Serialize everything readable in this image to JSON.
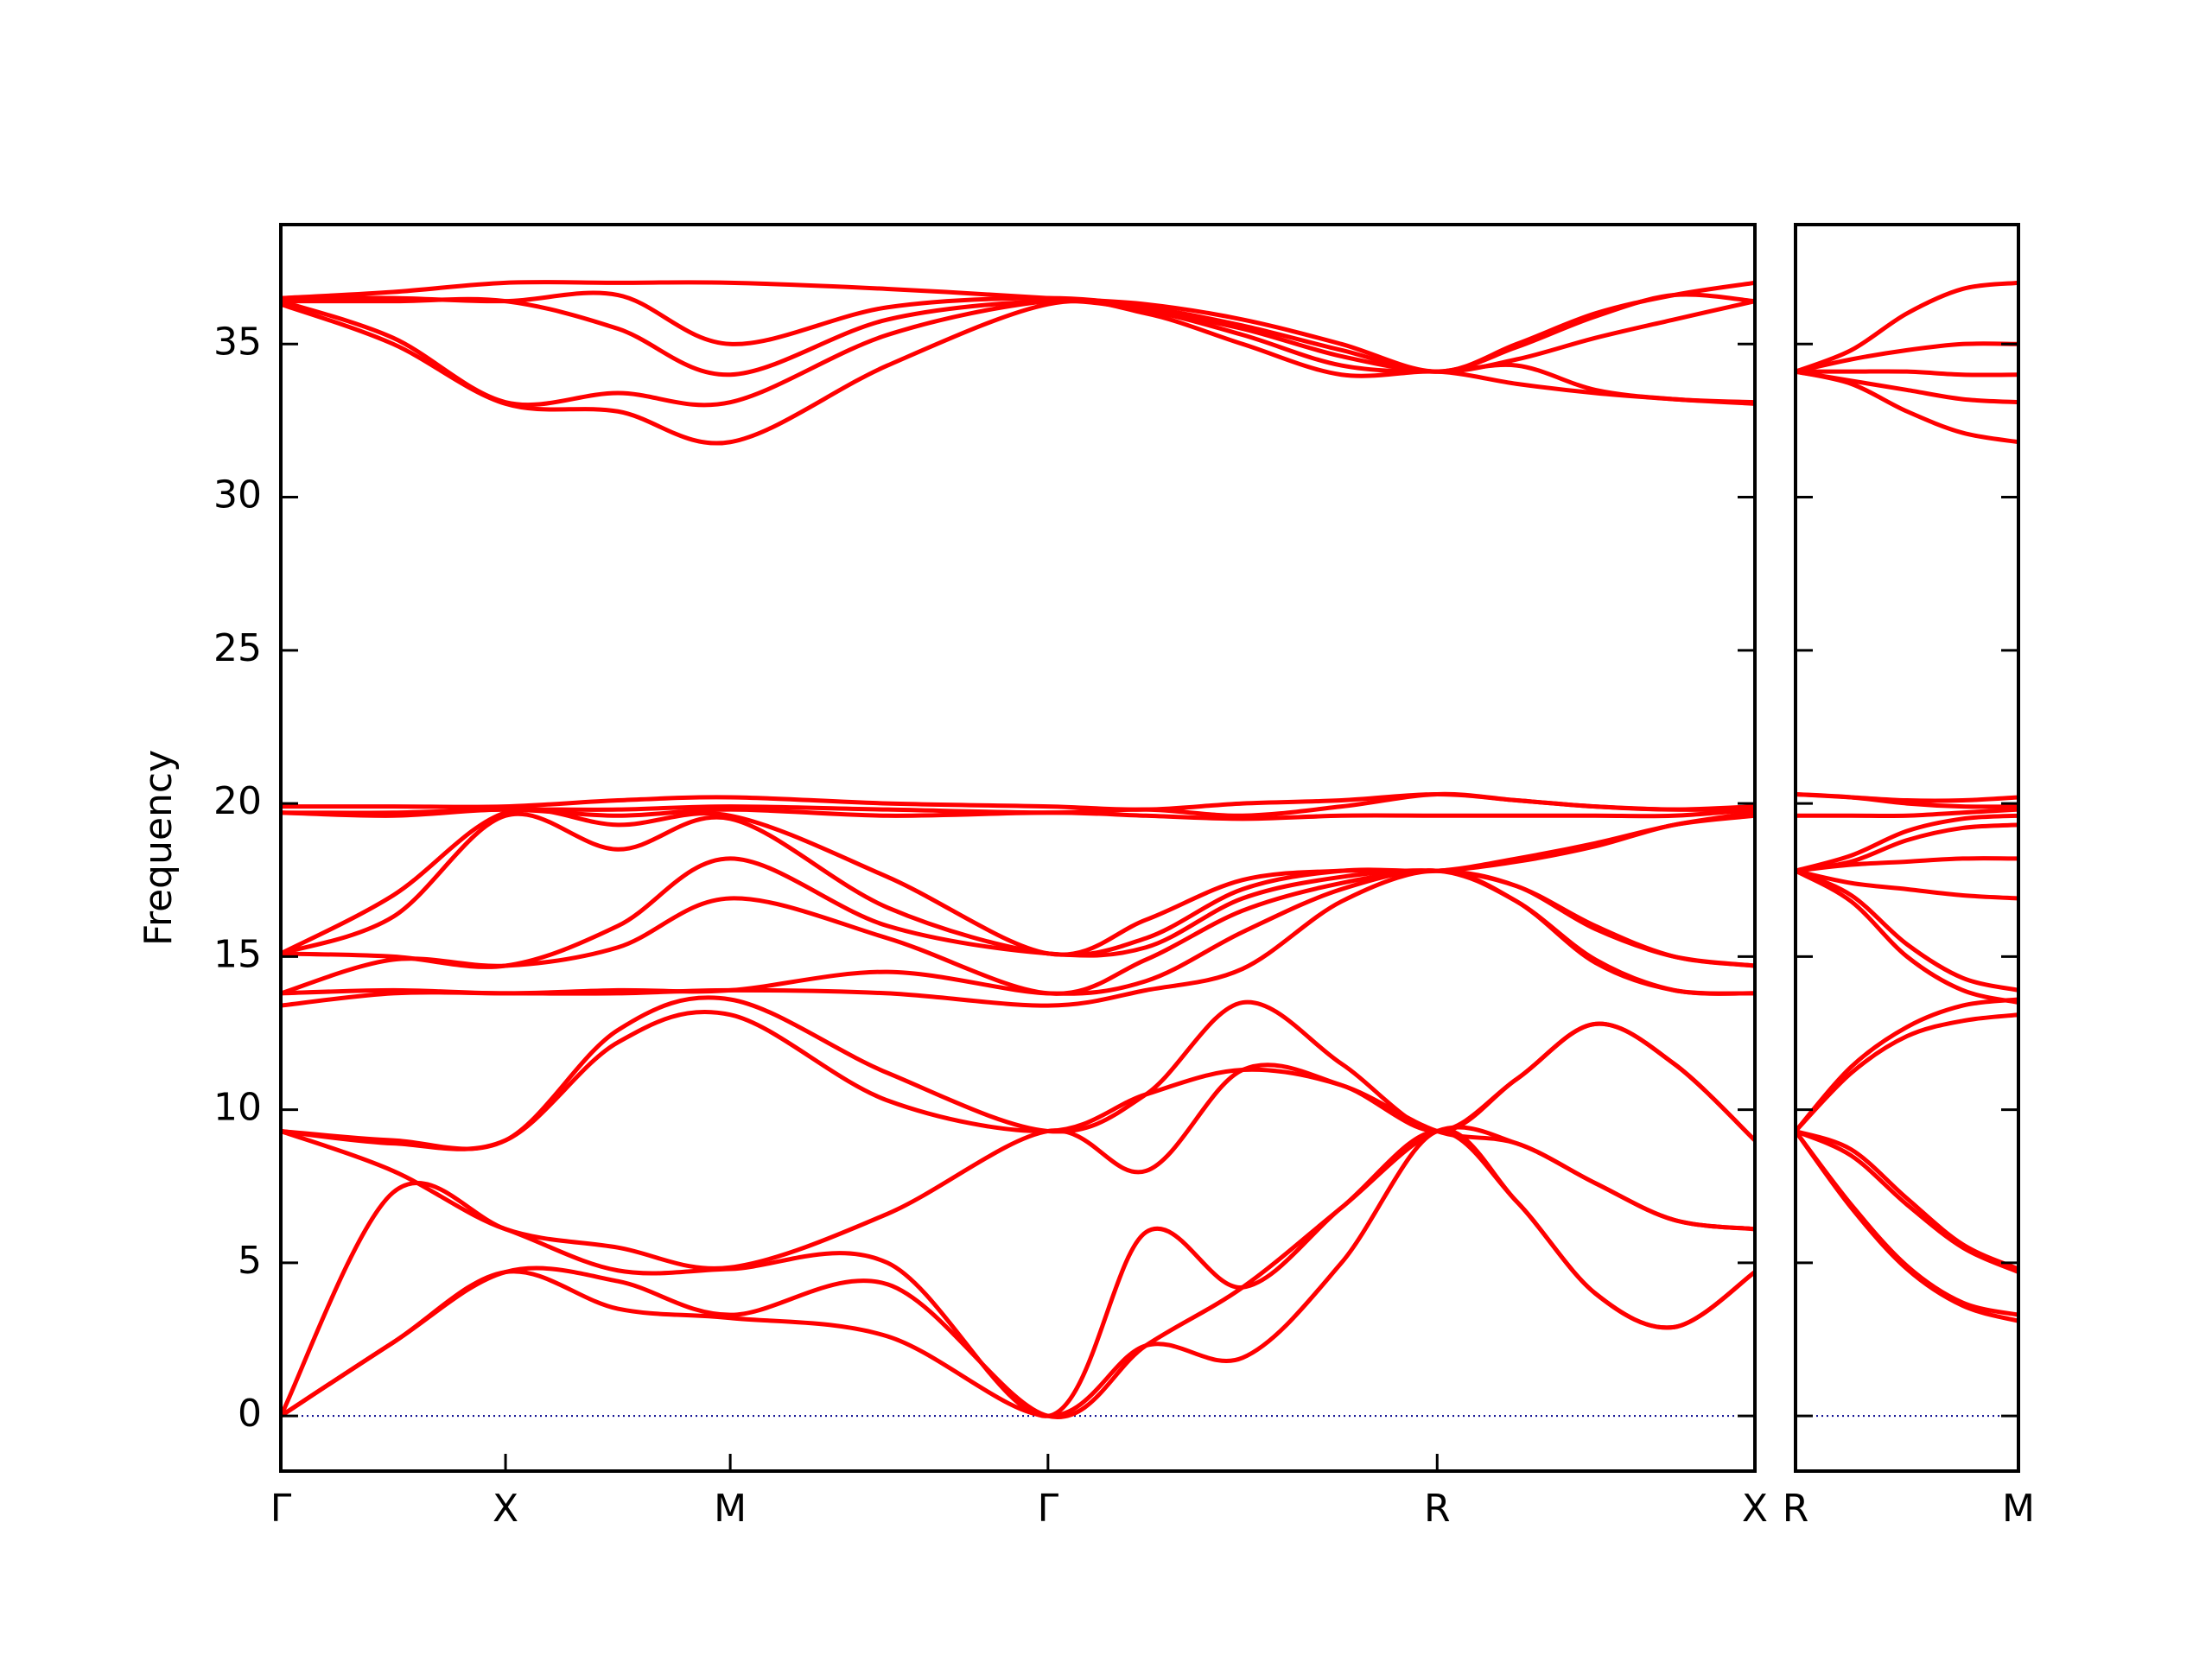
{
  "chart_data": [
    {
      "type": "line",
      "ylabel": "Frequency",
      "color": "#ff0000",
      "ytick_labels": true,
      "hline": {
        "value": 0,
        "color": "#00008b"
      },
      "xlim": [
        0,
        6.56
      ],
      "ylim": [
        -1.8,
        38.9
      ],
      "xticks": [
        {
          "value": 0,
          "label": "Γ"
        },
        {
          "value": 1,
          "label": "X"
        },
        {
          "value": 2,
          "label": "M"
        },
        {
          "value": 3.414,
          "label": "Γ"
        },
        {
          "value": 5.146,
          "label": "R"
        },
        {
          "value": 6.56,
          "label": "X"
        }
      ],
      "yticks": [
        0,
        5,
        10,
        15,
        20,
        25,
        30,
        35
      ],
      "x": [
        0,
        0.5,
        1,
        1.5,
        2,
        2.7,
        3.414,
        3.85,
        4.28,
        4.72,
        5.146,
        5.5,
        5.85,
        6.2,
        6.56
      ],
      "series": [
        {
          "values": [
            0,
            2.4,
            4.7,
            3.5,
            3.2,
            2.6,
            0,
            2.3,
            1.9,
            5.0,
            9.3,
            7.0,
            4.0,
            2.9,
            4.7
          ]
        },
        {
          "values": [
            0,
            2.4,
            4.7,
            4.4,
            3.3,
            4.3,
            0,
            2.3,
            4.2,
            6.8,
            9.3,
            7.0,
            4.0,
            2.9,
            4.7
          ]
        },
        {
          "values": [
            0,
            7.3,
            6.1,
            4.75,
            4.8,
            5.0,
            0,
            6.0,
            4.2,
            6.8,
            9.3,
            8.9,
            7.6,
            6.4,
            6.1
          ]
        },
        {
          "values": [
            9.3,
            8.0,
            6.1,
            5.5,
            4.85,
            6.6,
            9.3,
            8.0,
            11.3,
            10.8,
            9.3,
            8.9,
            7.6,
            6.4,
            6.1
          ]
        },
        {
          "values": [
            9.3,
            8.9,
            9.0,
            12.2,
            13.1,
            10.3,
            9.3,
            10.5,
            11.3,
            10.8,
            9.3,
            11.0,
            12.8,
            11.5,
            9.0
          ]
        },
        {
          "values": [
            9.3,
            9.0,
            9.0,
            12.6,
            13.6,
            11.2,
            9.3,
            10.5,
            13.5,
            11.5,
            9.3,
            11.0,
            12.8,
            11.5,
            9.0
          ]
        },
        {
          "values": [
            13.4,
            13.8,
            13.8,
            13.8,
            13.9,
            13.8,
            13.4,
            13.9,
            14.6,
            16.8,
            17.8,
            16.8,
            14.8,
            13.9,
            13.8
          ]
        },
        {
          "values": [
            13.8,
            13.9,
            13.8,
            13.9,
            13.9,
            14.5,
            13.8,
            14.2,
            15.8,
            17.2,
            17.8,
            16.8,
            14.9,
            13.9,
            13.8
          ]
        },
        {
          "values": [
            13.8,
            14.9,
            14.7,
            15.3,
            16.9,
            15.6,
            13.8,
            14.9,
            16.5,
            17.4,
            17.8,
            17.3,
            15.9,
            15.0,
            14.7
          ]
        },
        {
          "values": [
            15.1,
            15.0,
            14.7,
            16.0,
            18.2,
            16.0,
            15.1,
            15.3,
            16.9,
            17.6,
            17.8,
            17.3,
            16.0,
            15.0,
            14.7
          ]
        },
        {
          "values": [
            15.1,
            16.3,
            19.6,
            18.5,
            19.5,
            16.6,
            15.1,
            15.6,
            17.2,
            17.8,
            17.8,
            18.1,
            18.6,
            19.3,
            19.6
          ]
        },
        {
          "values": [
            15.1,
            17.0,
            19.7,
            19.3,
            19.6,
            17.6,
            15.1,
            16.2,
            17.5,
            17.8,
            17.8,
            18.2,
            18.7,
            19.3,
            19.7
          ]
        },
        {
          "values": [
            19.7,
            19.6,
            19.8,
            19.6,
            19.8,
            19.6,
            19.7,
            19.6,
            19.5,
            19.6,
            19.6,
            19.6,
            19.6,
            19.6,
            19.8
          ]
        },
        {
          "values": [
            19.7,
            19.7,
            19.8,
            19.8,
            19.9,
            19.8,
            19.7,
            19.8,
            19.6,
            19.9,
            20.3,
            20.1,
            19.9,
            19.8,
            19.8
          ]
        },
        {
          "values": [
            19.9,
            19.9,
            19.9,
            20.1,
            20.2,
            20.0,
            19.9,
            19.8,
            20.0,
            20.1,
            20.3,
            20.1,
            19.9,
            19.8,
            19.9
          ]
        },
        {
          "values": [
            36.3,
            35.0,
            33.05,
            32.8,
            31.8,
            34.3,
            36.3,
            36.0,
            35.0,
            34.0,
            34.1,
            33.7,
            33.4,
            33.2,
            33.05
          ]
        },
        {
          "values": [
            36.4,
            35.2,
            33.1,
            33.4,
            33.1,
            35.3,
            36.4,
            36.1,
            35.3,
            34.3,
            34.1,
            34.3,
            33.5,
            33.2,
            33.1
          ]
        },
        {
          "values": [
            36.4,
            36.4,
            36.4,
            35.5,
            34.0,
            35.8,
            36.4,
            36.1,
            35.5,
            34.6,
            34.1,
            34.5,
            35.2,
            35.8,
            36.4
          ]
        },
        {
          "values": [
            36.5,
            36.5,
            36.4,
            36.6,
            35.0,
            36.2,
            36.5,
            36.2,
            35.6,
            34.8,
            34.1,
            34.9,
            35.9,
            36.6,
            36.4
          ]
        },
        {
          "values": [
            36.5,
            36.7,
            37.0,
            37.0,
            37.0,
            36.8,
            36.5,
            36.3,
            35.8,
            35.0,
            34.1,
            35.0,
            36.0,
            36.6,
            37.0
          ]
        }
      ]
    },
    {
      "type": "line",
      "color": "#ff0000",
      "ytick_labels": false,
      "hline": {
        "value": 0,
        "color": "#00008b"
      },
      "xlim": [
        0,
        1
      ],
      "ylim": [
        -1.8,
        38.9
      ],
      "xticks": [
        {
          "value": 0,
          "label": "R"
        },
        {
          "value": 1,
          "label": "M"
        }
      ],
      "yticks": [
        0,
        5,
        10,
        15,
        20,
        25,
        30,
        35
      ],
      "x": [
        0,
        0.25,
        0.5,
        0.75,
        1
      ],
      "series": [
        {
          "values": [
            9.3,
            6.8,
            4.8,
            3.6,
            3.1
          ]
        },
        {
          "values": [
            9.3,
            6.9,
            4.9,
            3.7,
            3.3
          ]
        },
        {
          "values": [
            9.3,
            8.5,
            6.9,
            5.5,
            4.7
          ]
        },
        {
          "values": [
            9.3,
            8.7,
            7.1,
            5.6,
            4.8
          ]
        },
        {
          "values": [
            9.3,
            11.2,
            12.4,
            12.9,
            13.1
          ]
        },
        {
          "values": [
            9.3,
            11.4,
            12.7,
            13.4,
            13.6
          ]
        },
        {
          "values": [
            17.8,
            16.8,
            15.0,
            13.9,
            13.5
          ]
        },
        {
          "values": [
            17.8,
            17.0,
            15.4,
            14.3,
            13.9
          ]
        },
        {
          "values": [
            17.8,
            17.4,
            17.2,
            17.0,
            16.9
          ]
        },
        {
          "values": [
            17.8,
            18.0,
            18.1,
            18.2,
            18.2
          ]
        },
        {
          "values": [
            17.8,
            18.1,
            18.8,
            19.2,
            19.3
          ]
        },
        {
          "values": [
            17.8,
            18.3,
            19.1,
            19.5,
            19.6
          ]
        },
        {
          "values": [
            19.6,
            19.6,
            19.6,
            19.7,
            19.8
          ]
        },
        {
          "values": [
            20.3,
            20.2,
            20.0,
            19.9,
            19.9
          ]
        },
        {
          "values": [
            20.3,
            20.2,
            20.1,
            20.1,
            20.2
          ]
        },
        {
          "values": [
            34.1,
            33.7,
            32.8,
            32.1,
            31.8
          ]
        },
        {
          "values": [
            34.1,
            33.8,
            33.5,
            33.2,
            33.1
          ]
        },
        {
          "values": [
            34.1,
            34.1,
            34.1,
            34.0,
            34.0
          ]
        },
        {
          "values": [
            34.1,
            34.5,
            34.8,
            35.0,
            35.0
          ]
        },
        {
          "values": [
            34.1,
            34.8,
            36.0,
            36.8,
            37.0
          ]
        }
      ]
    }
  ]
}
